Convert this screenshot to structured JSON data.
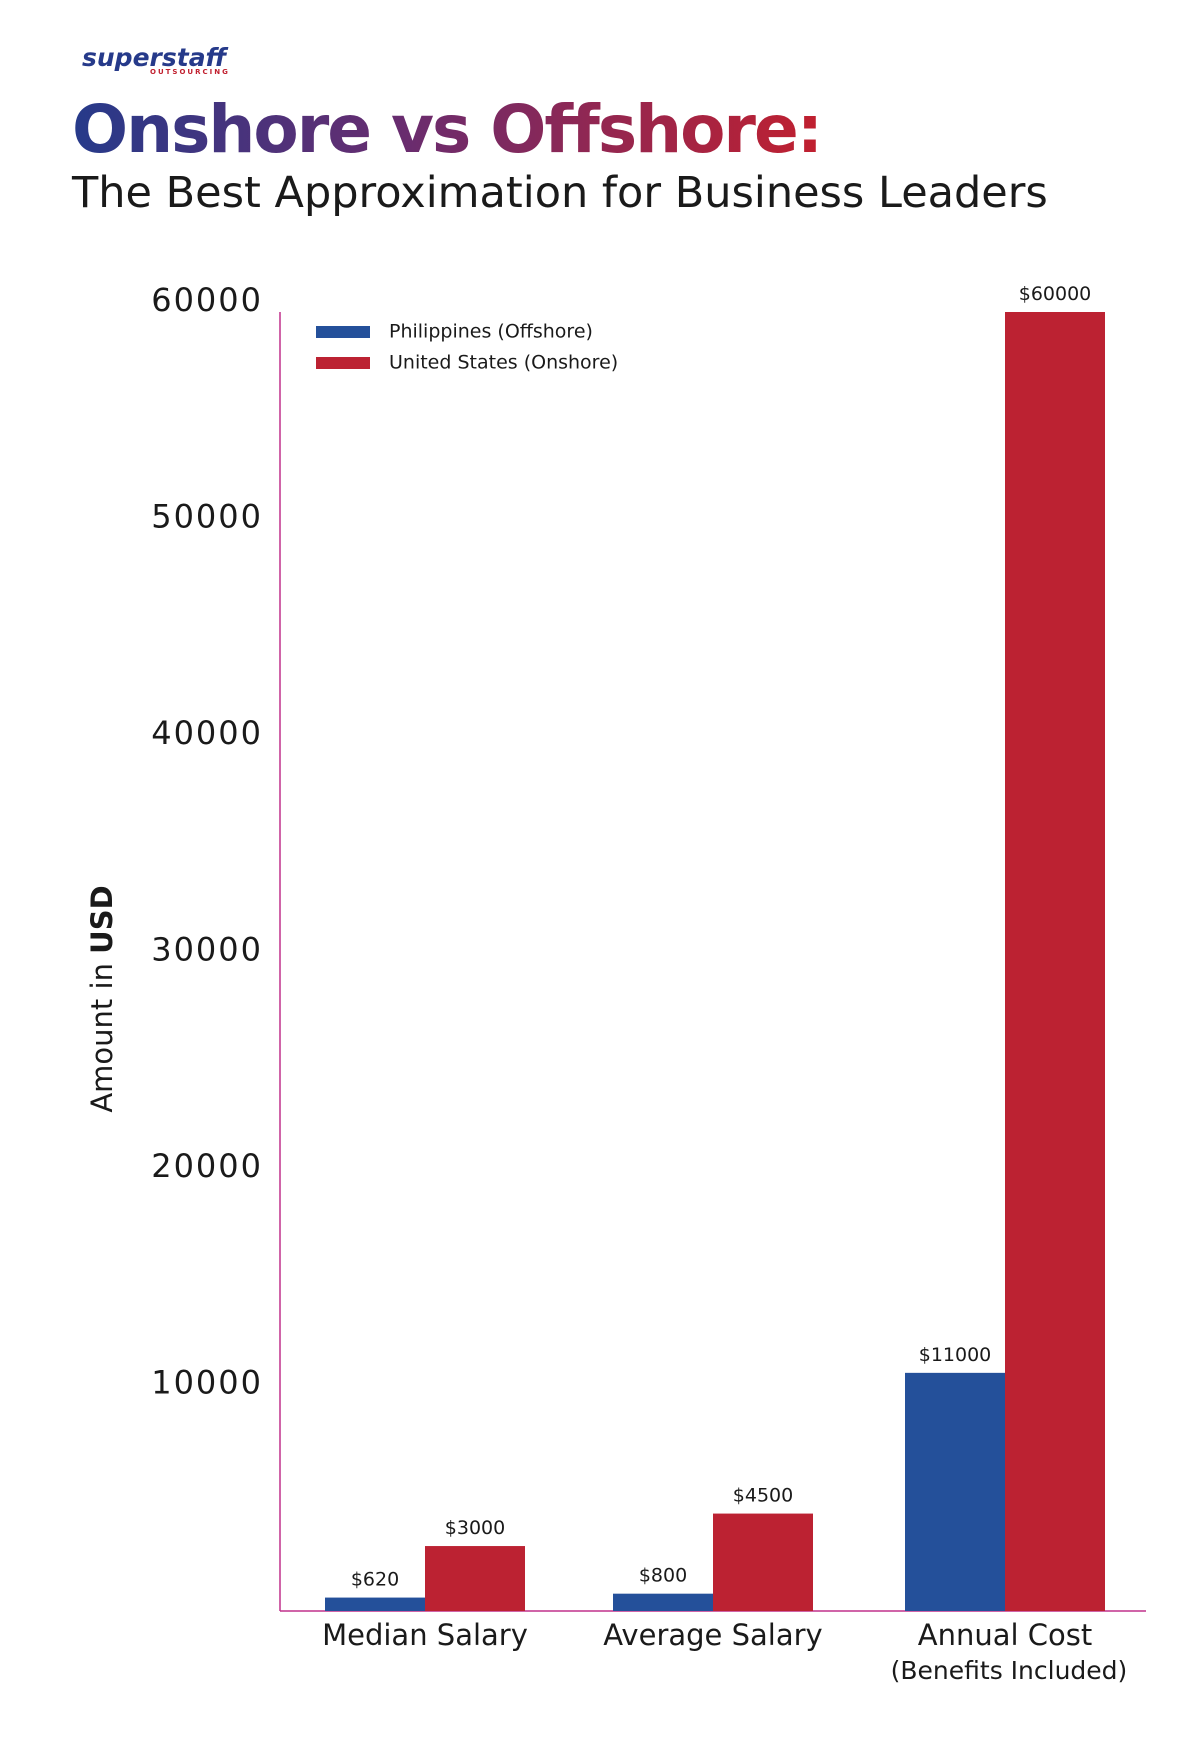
{
  "logo": {
    "brand": "superstaff",
    "tagline": "OUTSOURCING"
  },
  "chart_data": {
    "type": "bar",
    "title": "Onshore vs Offshore:",
    "subtitle": "The Best Approximation for Business Leaders",
    "y_label": "Amount in",
    "y_label_unit": "USD",
    "categories": [
      "Median Salary",
      "Average Salary",
      "Annual Cost (Benefits Included)"
    ],
    "series": [
      {
        "name": "Philippines (Offshore)",
        "color": "#24509a",
        "values": [
          620,
          800,
          11000
        ],
        "value_labels": [
          "$620",
          "$800",
          "$11000"
        ]
      },
      {
        "name": "United States (Onshore)",
        "color": "#bc2232",
        "values": [
          3000,
          4500,
          60000
        ],
        "value_labels": [
          "$3000",
          "$4500",
          "$60000"
        ]
      }
    ],
    "ylim": [
      0,
      60000
    ],
    "yticks": [
      10000,
      20000,
      30000,
      40000,
      50000,
      60000
    ],
    "grid": false,
    "legend_position": "upper-left"
  }
}
